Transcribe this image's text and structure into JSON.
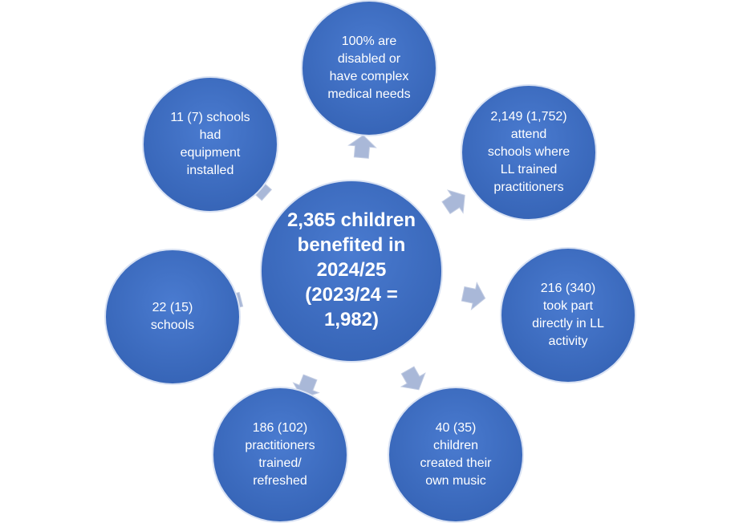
{
  "center": {
    "lines": [
      "2,365 children",
      "benefited in",
      "2024/25",
      "(2023/24 =",
      "1,982)"
    ]
  },
  "nodes": [
    {
      "lines": [
        "100% are",
        "disabled or",
        "have complex",
        "medical needs"
      ]
    },
    {
      "lines": [
        "2,149 (1,752)",
        "attend",
        "schools where",
        "LL trained",
        "practitioners"
      ]
    },
    {
      "lines": [
        "216 (340)",
        "took part",
        "directly in LL",
        "activity"
      ]
    },
    {
      "lines": [
        "40 (35)",
        "children",
        "created their",
        "own music"
      ]
    },
    {
      "lines": [
        "186 (102)",
        "practitioners",
        "trained/",
        "refreshed"
      ]
    },
    {
      "lines": [
        "22 (15)",
        "schools"
      ]
    },
    {
      "lines": [
        "11 (7) schools",
        "had",
        "equipment",
        "installed"
      ]
    }
  ]
}
